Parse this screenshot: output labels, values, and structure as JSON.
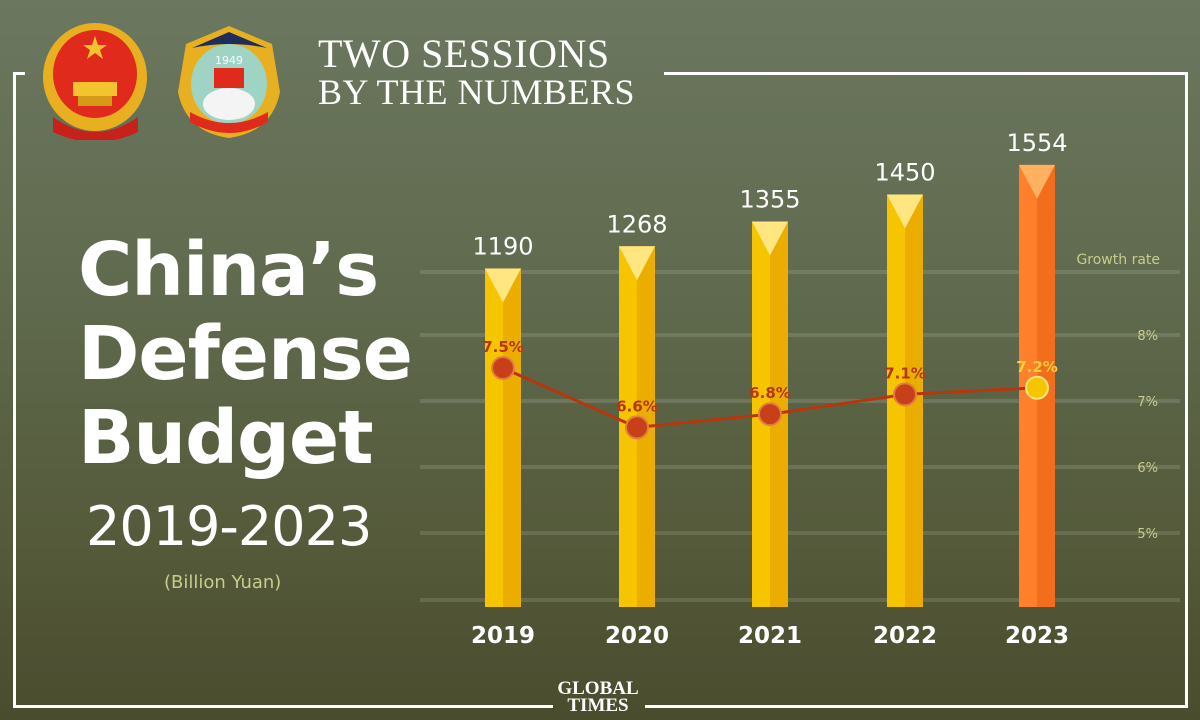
{
  "header": {
    "line1": "TWO SESSIONS",
    "line2": "BY THE NUMBERS"
  },
  "title": {
    "line1": "China’s",
    "line2": "Defense",
    "line3": "Budget",
    "years": "2019-2023",
    "unit": "(Billion Yuan)"
  },
  "logos": {
    "emblem_left": "national-emblem",
    "emblem_right_text": "1949",
    "brand": "GLOBAL TIMES"
  },
  "chart_data": {
    "type": "bar+line",
    "categories": [
      "2019",
      "2020",
      "2021",
      "2022",
      "2023"
    ],
    "series": [
      {
        "kind": "bar",
        "values": [
          1190,
          1268,
          1355,
          1450,
          1554
        ],
        "labels": [
          "1190",
          "1268",
          "1355",
          "1450",
          "1554"
        ],
        "colors": [
          "#f7c400",
          "#f7c400",
          "#f7c400",
          "#f7c400",
          "#ff7f2a"
        ]
      },
      {
        "kind": "line",
        "axis": "right",
        "values": [
          7.5,
          6.6,
          6.8,
          7.1,
          7.2
        ],
        "labels": [
          "7.5%",
          "6.6%",
          "6.8%",
          "7.1%",
          "7.2%"
        ],
        "color": "#b8360e"
      }
    ],
    "right_axis": {
      "label": "Growth rate",
      "ticks": [
        "8%",
        "7%",
        "6%",
        "5%"
      ],
      "tick_values": [
        8,
        7,
        6,
        5
      ],
      "range": [
        4,
        9
      ]
    },
    "grid": true
  }
}
